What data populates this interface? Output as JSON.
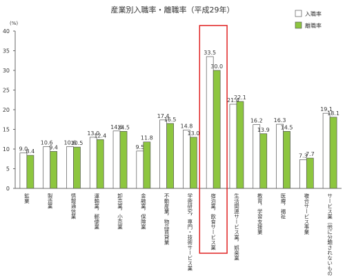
{
  "chart_data": {
    "type": "bar",
    "title": "産業別入職率・離職率（平成29年）",
    "y_label": "(%)",
    "categories": [
      "鉱業",
      "製造業",
      "情報通信業",
      "運輸業，郵便業",
      "卸売業，小売業",
      "金融業，保険業",
      "不動産業，物品賃貸業",
      "学術研究，専門・技術サービス業",
      "宿泊業，飲食サービス業",
      "生活関連サービス業，娯楽業",
      "教育，学習支援業",
      "医療，福祉",
      "複合サービス事業",
      "サービス業（他に分類されないもの）"
    ],
    "series": [
      {
        "name": "入職率",
        "color": "#ffffff",
        "values": [
          9.0,
          10.6,
          10.6,
          13.0,
          14.6,
          9.5,
          17.4,
          14.8,
          33.5,
          21.4,
          16.2,
          16.3,
          7.3,
          19.1
        ],
        "value_labels": [
          "9.0",
          "10.6",
          "10.6",
          "13.0",
          "14.6",
          "9.5",
          "17.4",
          "14.8",
          "33.5",
          "21.4",
          "16.2",
          "16.3",
          "7.3",
          "19.1"
        ]
      },
      {
        "name": "離職率",
        "color": "#8dc63f",
        "values": [
          8.4,
          9.4,
          10.5,
          12.4,
          14.5,
          11.8,
          16.5,
          13.0,
          30.0,
          22.1,
          13.9,
          14.5,
          7.7,
          18.1
        ],
        "value_labels": [
          "8.4",
          "9.4",
          "10.5",
          "12.4",
          "14.5",
          "11.8",
          "16.5",
          "13.0",
          "30.0",
          "22.1",
          "13.9",
          "14.5",
          "7.7",
          "18.1"
        ]
      }
    ],
    "ylim": [
      0,
      40
    ],
    "yticks": [
      0,
      5,
      10,
      15,
      20,
      25,
      30,
      35,
      40
    ],
    "grid": false,
    "legend": "top-right",
    "highlight_index": 8
  }
}
